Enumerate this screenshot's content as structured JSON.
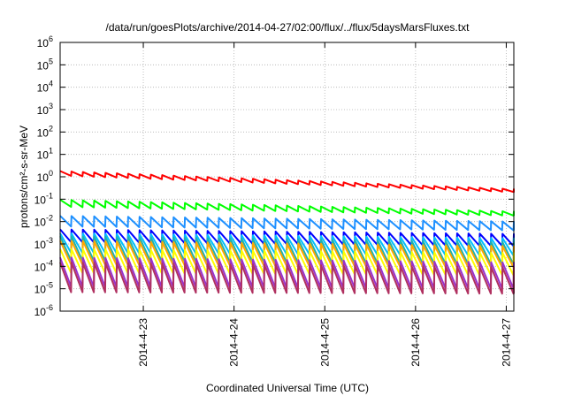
{
  "chart_data": {
    "type": "line",
    "title": "/data/run/goesPlots/archive/2014-04-27/02:00/flux/../flux/5daysMarsFluxes.txt",
    "xlabel": "Coordinated Universal Time (UTC)",
    "ylabel": "protons/cm²-s-sr-MeV",
    "y_scale": "log",
    "ylim_exp": [
      -6,
      6
    ],
    "y_tick_exponents": [
      -6,
      -5,
      -4,
      -3,
      -2,
      -1,
      0,
      1,
      2,
      3,
      4,
      5,
      6
    ],
    "y_tick_base": "10",
    "x_range": [
      "2014-04-22 02:00",
      "2014-04-27 02:00"
    ],
    "x_ticks": [
      {
        "date": "2014-04-23 00:00",
        "label": "2014-4-23"
      },
      {
        "date": "2014-04-24 00:00",
        "label": "2014-4-24"
      },
      {
        "date": "2014-04-25 00:00",
        "label": "2014-4-25"
      },
      {
        "date": "2014-04-26 00:00",
        "label": "2014-4-26"
      },
      {
        "date": "2014-04-27 00:00",
        "label": "2014-4-27"
      }
    ],
    "grid": true,
    "legend": "none",
    "pulse_period_hours": 3,
    "series": [
      {
        "color": "#ff0000",
        "start_high": 1.8,
        "start_low": 1.1,
        "end_high": 0.28,
        "end_low": 0.2
      },
      {
        "color": "#00ff00",
        "start_high": 0.095,
        "start_low": 0.045,
        "end_high": 0.028,
        "end_low": 0.018
      },
      {
        "color": "#1e90ff",
        "start_high": 0.018,
        "start_low": 0.006,
        "end_high": 0.01,
        "end_low": 0.004
      },
      {
        "color": "#0000ff",
        "start_high": 0.0045,
        "start_low": 0.0012,
        "end_high": 0.0028,
        "end_low": 0.0008
      },
      {
        "color": "#00bfff",
        "start_high": 0.003,
        "start_low": 0.0004,
        "end_high": 0.0018,
        "end_low": 0.0003
      },
      {
        "color": "#20b2aa",
        "start_high": 0.0022,
        "start_low": 0.00018,
        "end_high": 0.0012,
        "end_low": 0.00012
      },
      {
        "color": "#ffa500",
        "start_high": 0.0014,
        "start_low": 0.00012,
        "end_high": 0.0008,
        "end_low": 9e-05
      },
      {
        "color": "#ffff00",
        "start_high": 0.0006,
        "start_low": 5e-05,
        "end_high": 0.0004,
        "end_low": 4e-05
      },
      {
        "color": "#9932cc",
        "start_high": 0.00025,
        "start_low": 1.2e-05,
        "end_high": 0.00015,
        "end_low": 1e-05
      },
      {
        "color": "#b03060",
        "start_high": 0.00015,
        "start_low": 7e-06,
        "end_high": 9e-05,
        "end_low": 6e-06
      }
    ]
  }
}
